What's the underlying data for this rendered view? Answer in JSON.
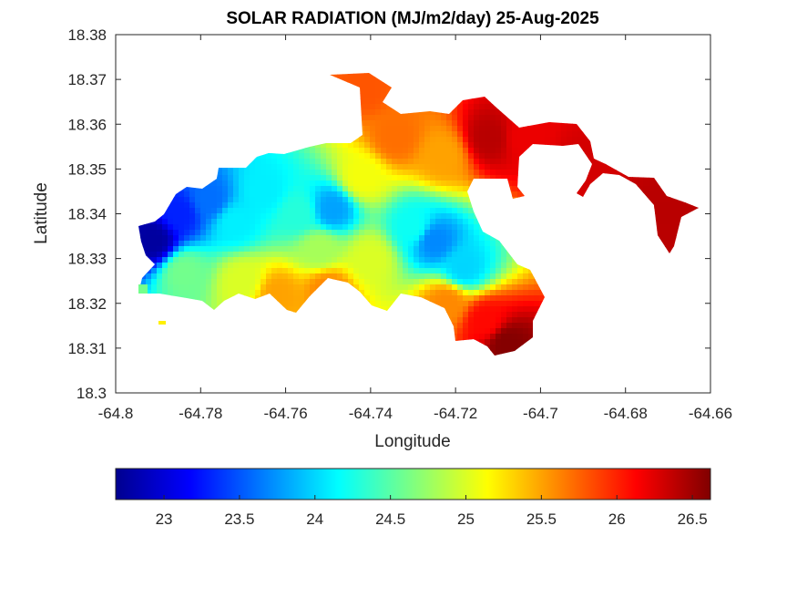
{
  "chart_data": {
    "type": "heatmap",
    "title": "SOLAR RADIATION (MJ/m2/day) 25-Aug-2025",
    "xlabel": "Longitude",
    "ylabel": "Latitude",
    "xlim": [
      -64.8,
      -64.66
    ],
    "ylim": [
      18.3,
      18.38
    ],
    "xticks": [
      "-64.8",
      "-64.78",
      "-64.76",
      "-64.74",
      "-64.72",
      "-64.7",
      "-64.68",
      "-64.66"
    ],
    "yticks": [
      "18.3",
      "18.31",
      "18.32",
      "18.33",
      "18.34",
      "18.35",
      "18.36",
      "18.37",
      "18.38"
    ],
    "grid": false,
    "colormap": "jet",
    "colorbar": {
      "orientation": "horizontal",
      "placement": "below",
      "range": [
        22.68,
        26.62
      ],
      "ticks": [
        "23",
        "23.5",
        "24",
        "24.5",
        "25",
        "25.5",
        "26",
        "26.5"
      ]
    },
    "values": [
      {
        "lon": -64.791,
        "lat": 18.334,
        "value": 22.8
      },
      {
        "lon": -64.785,
        "lat": 18.34,
        "value": 23.3
      },
      {
        "lon": -64.778,
        "lat": 18.343,
        "value": 23.6
      },
      {
        "lon": -64.772,
        "lat": 18.338,
        "value": 24.1
      },
      {
        "lon": -64.784,
        "lat": 18.327,
        "value": 24.6
      },
      {
        "lon": -64.77,
        "lat": 18.325,
        "value": 25.0
      },
      {
        "lon": -64.762,
        "lat": 18.322,
        "value": 25.5
      },
      {
        "lon": -64.765,
        "lat": 18.345,
        "value": 24.1
      },
      {
        "lon": -64.757,
        "lat": 18.34,
        "value": 24.3
      },
      {
        "lon": -64.749,
        "lat": 18.341,
        "value": 23.8
      },
      {
        "lon": -64.752,
        "lat": 18.332,
        "value": 24.8
      },
      {
        "lon": -64.75,
        "lat": 18.323,
        "value": 25.6
      },
      {
        "lon": -64.74,
        "lat": 18.33,
        "value": 25.0
      },
      {
        "lon": -64.742,
        "lat": 18.348,
        "value": 25.1
      },
      {
        "lon": -64.73,
        "lat": 18.337,
        "value": 24.2
      },
      {
        "lon": -64.725,
        "lat": 18.334,
        "value": 23.7
      },
      {
        "lon": -64.718,
        "lat": 18.328,
        "value": 24.0
      },
      {
        "lon": -64.722,
        "lat": 18.32,
        "value": 25.6
      },
      {
        "lon": -64.734,
        "lat": 18.357,
        "value": 25.7
      },
      {
        "lon": -64.742,
        "lat": 18.368,
        "value": 25.8
      },
      {
        "lon": -64.723,
        "lat": 18.353,
        "value": 25.5
      },
      {
        "lon": -64.712,
        "lat": 18.357,
        "value": 26.4
      },
      {
        "lon": -64.704,
        "lat": 18.357,
        "value": 26.2
      },
      {
        "lon": -64.69,
        "lat": 18.351,
        "value": 26.3
      },
      {
        "lon": -64.672,
        "lat": 18.34,
        "value": 26.4
      },
      {
        "lon": -64.713,
        "lat": 18.316,
        "value": 26.1
      },
      {
        "lon": -64.708,
        "lat": 18.311,
        "value": 26.6
      }
    ]
  }
}
